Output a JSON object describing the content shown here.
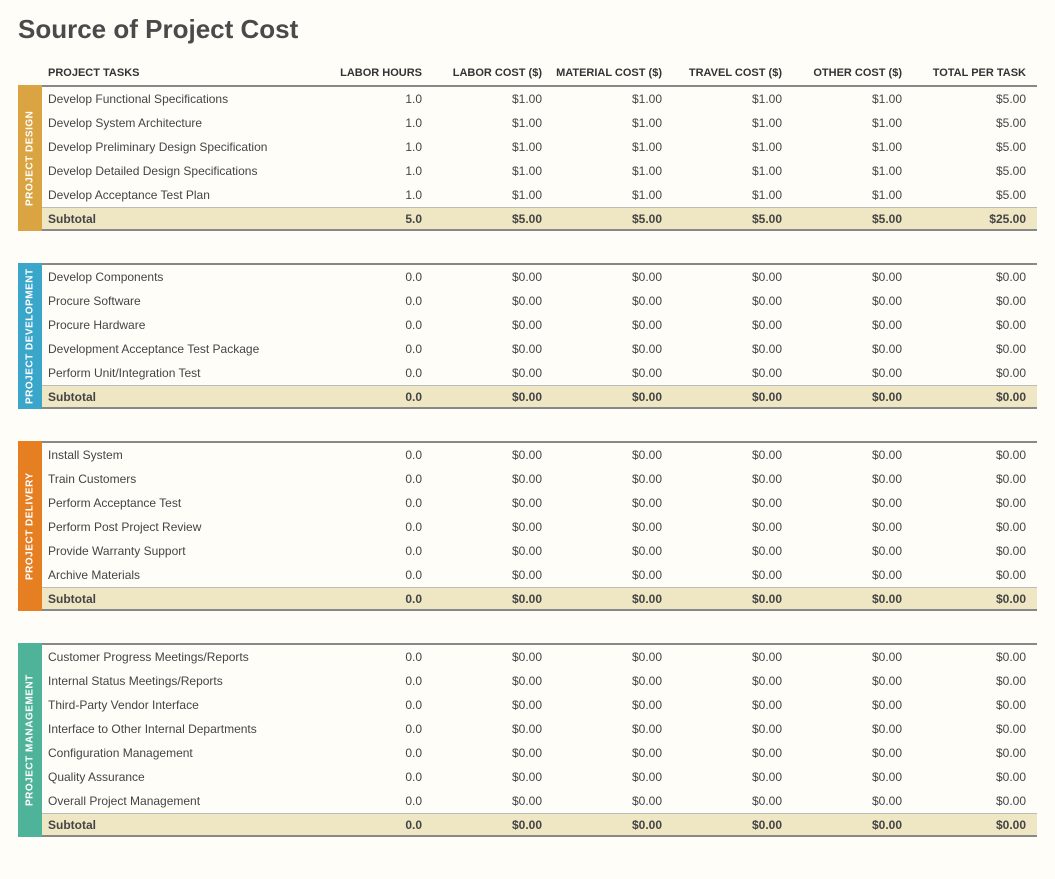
{
  "title": "Source of Project Cost",
  "columns": {
    "task": "PROJECT TASKS",
    "labor_hours": "LABOR HOURS",
    "labor_cost": "LABOR COST ($)",
    "material_cost": "MATERIAL COST ($)",
    "travel_cost": "TRAVEL COST ($)",
    "other_cost": "OTHER COST ($)",
    "total": "TOTAL PER TASK"
  },
  "subtotal_label": "Subtotal",
  "colors": {
    "bg": "#fffdf8",
    "subtotal_bg": "#efe6c4",
    "border": "#888888",
    "tab_design": "#d9a441",
    "tab_development": "#3aa6c9",
    "tab_delivery": "#e67e22",
    "tab_management": "#4fb39a"
  },
  "sections": [
    {
      "id": "design",
      "label": "PROJECT DESIGN",
      "tab_color": "#d9a441",
      "rows": [
        {
          "task": "Develop Functional Specifications",
          "labor_hours": "1.0",
          "labor_cost": "$1.00",
          "material_cost": "$1.00",
          "travel_cost": "$1.00",
          "other_cost": "$1.00",
          "total": "$5.00"
        },
        {
          "task": "Develop System Architecture",
          "labor_hours": "1.0",
          "labor_cost": "$1.00",
          "material_cost": "$1.00",
          "travel_cost": "$1.00",
          "other_cost": "$1.00",
          "total": "$5.00"
        },
        {
          "task": "Develop Preliminary Design Specification",
          "labor_hours": "1.0",
          "labor_cost": "$1.00",
          "material_cost": "$1.00",
          "travel_cost": "$1.00",
          "other_cost": "$1.00",
          "total": "$5.00"
        },
        {
          "task": "Develop Detailed Design Specifications",
          "labor_hours": "1.0",
          "labor_cost": "$1.00",
          "material_cost": "$1.00",
          "travel_cost": "$1.00",
          "other_cost": "$1.00",
          "total": "$5.00"
        },
        {
          "task": "Develop Acceptance Test Plan",
          "labor_hours": "1.0",
          "labor_cost": "$1.00",
          "material_cost": "$1.00",
          "travel_cost": "$1.00",
          "other_cost": "$1.00",
          "total": "$5.00"
        }
      ],
      "subtotal": {
        "labor_hours": "5.0",
        "labor_cost": "$5.00",
        "material_cost": "$5.00",
        "travel_cost": "$5.00",
        "other_cost": "$5.00",
        "total": "$25.00"
      }
    },
    {
      "id": "development",
      "label": "PROJECT DEVELOPMENT",
      "tab_color": "#3aa6c9",
      "rows": [
        {
          "task": "Develop Components",
          "labor_hours": "0.0",
          "labor_cost": "$0.00",
          "material_cost": "$0.00",
          "travel_cost": "$0.00",
          "other_cost": "$0.00",
          "total": "$0.00"
        },
        {
          "task": "Procure Software",
          "labor_hours": "0.0",
          "labor_cost": "$0.00",
          "material_cost": "$0.00",
          "travel_cost": "$0.00",
          "other_cost": "$0.00",
          "total": "$0.00"
        },
        {
          "task": "Procure Hardware",
          "labor_hours": "0.0",
          "labor_cost": "$0.00",
          "material_cost": "$0.00",
          "travel_cost": "$0.00",
          "other_cost": "$0.00",
          "total": "$0.00"
        },
        {
          "task": "Development Acceptance Test Package",
          "labor_hours": "0.0",
          "labor_cost": "$0.00",
          "material_cost": "$0.00",
          "travel_cost": "$0.00",
          "other_cost": "$0.00",
          "total": "$0.00"
        },
        {
          "task": "Perform Unit/Integration Test",
          "labor_hours": "0.0",
          "labor_cost": "$0.00",
          "material_cost": "$0.00",
          "travel_cost": "$0.00",
          "other_cost": "$0.00",
          "total": "$0.00"
        }
      ],
      "subtotal": {
        "labor_hours": "0.0",
        "labor_cost": "$0.00",
        "material_cost": "$0.00",
        "travel_cost": "$0.00",
        "other_cost": "$0.00",
        "total": "$0.00"
      }
    },
    {
      "id": "delivery",
      "label": "PROJECT DELIVERY",
      "tab_color": "#e67e22",
      "rows": [
        {
          "task": "Install System",
          "labor_hours": "0.0",
          "labor_cost": "$0.00",
          "material_cost": "$0.00",
          "travel_cost": "$0.00",
          "other_cost": "$0.00",
          "total": "$0.00"
        },
        {
          "task": "Train Customers",
          "labor_hours": "0.0",
          "labor_cost": "$0.00",
          "material_cost": "$0.00",
          "travel_cost": "$0.00",
          "other_cost": "$0.00",
          "total": "$0.00"
        },
        {
          "task": "Perform Acceptance Test",
          "labor_hours": "0.0",
          "labor_cost": "$0.00",
          "material_cost": "$0.00",
          "travel_cost": "$0.00",
          "other_cost": "$0.00",
          "total": "$0.00"
        },
        {
          "task": "Perform Post Project Review",
          "labor_hours": "0.0",
          "labor_cost": "$0.00",
          "material_cost": "$0.00",
          "travel_cost": "$0.00",
          "other_cost": "$0.00",
          "total": "$0.00"
        },
        {
          "task": "Provide Warranty Support",
          "labor_hours": "0.0",
          "labor_cost": "$0.00",
          "material_cost": "$0.00",
          "travel_cost": "$0.00",
          "other_cost": "$0.00",
          "total": "$0.00"
        },
        {
          "task": "Archive Materials",
          "labor_hours": "0.0",
          "labor_cost": "$0.00",
          "material_cost": "$0.00",
          "travel_cost": "$0.00",
          "other_cost": "$0.00",
          "total": "$0.00"
        }
      ],
      "subtotal": {
        "labor_hours": "0.0",
        "labor_cost": "$0.00",
        "material_cost": "$0.00",
        "travel_cost": "$0.00",
        "other_cost": "$0.00",
        "total": "$0.00"
      }
    },
    {
      "id": "management",
      "label": "PROJECT MANAGEMENT",
      "tab_color": "#4fb39a",
      "rows": [
        {
          "task": "Customer Progress Meetings/Reports",
          "labor_hours": "0.0",
          "labor_cost": "$0.00",
          "material_cost": "$0.00",
          "travel_cost": "$0.00",
          "other_cost": "$0.00",
          "total": "$0.00"
        },
        {
          "task": "Internal Status Meetings/Reports",
          "labor_hours": "0.0",
          "labor_cost": "$0.00",
          "material_cost": "$0.00",
          "travel_cost": "$0.00",
          "other_cost": "$0.00",
          "total": "$0.00"
        },
        {
          "task": "Third-Party Vendor Interface",
          "labor_hours": "0.0",
          "labor_cost": "$0.00",
          "material_cost": "$0.00",
          "travel_cost": "$0.00",
          "other_cost": "$0.00",
          "total": "$0.00"
        },
        {
          "task": "Interface to Other Internal Departments",
          "labor_hours": "0.0",
          "labor_cost": "$0.00",
          "material_cost": "$0.00",
          "travel_cost": "$0.00",
          "other_cost": "$0.00",
          "total": "$0.00"
        },
        {
          "task": "Configuration Management",
          "labor_hours": "0.0",
          "labor_cost": "$0.00",
          "material_cost": "$0.00",
          "travel_cost": "$0.00",
          "other_cost": "$0.00",
          "total": "$0.00"
        },
        {
          "task": "Quality Assurance",
          "labor_hours": "0.0",
          "labor_cost": "$0.00",
          "material_cost": "$0.00",
          "travel_cost": "$0.00",
          "other_cost": "$0.00",
          "total": "$0.00"
        },
        {
          "task": "Overall Project Management",
          "labor_hours": "0.0",
          "labor_cost": "$0.00",
          "material_cost": "$0.00",
          "travel_cost": "$0.00",
          "other_cost": "$0.00",
          "total": "$0.00"
        }
      ],
      "subtotal": {
        "labor_hours": "0.0",
        "labor_cost": "$0.00",
        "material_cost": "$0.00",
        "travel_cost": "$0.00",
        "other_cost": "$0.00",
        "total": "$0.00"
      }
    }
  ]
}
